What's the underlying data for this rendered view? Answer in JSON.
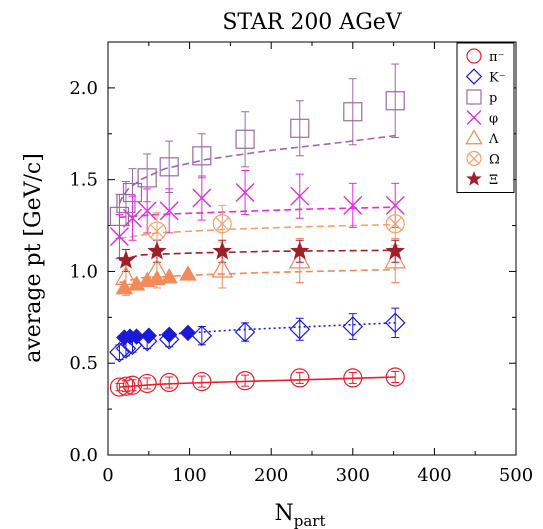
{
  "chart_data": {
    "type": "scatter",
    "title": "STAR 200 AGeV",
    "xlabel": "N",
    "xlabel_sub": "part",
    "ylabel": "average pt [GeV/c]",
    "xlim": [
      0,
      500
    ],
    "ylim": [
      0,
      2.25
    ],
    "xticks": [
      0,
      100,
      200,
      300,
      400,
      500
    ],
    "yticks": [
      0.0,
      0.5,
      1.0,
      1.5,
      2.0
    ],
    "xtick_labels": [
      "0",
      "100",
      "200",
      "300",
      "400",
      "500"
    ],
    "ytick_labels": [
      "0.0",
      "0.5",
      "1.0",
      "1.5",
      "2.0"
    ],
    "grid": false,
    "legend_position": "top-right",
    "series": [
      {
        "name": "π⁻",
        "marker": "circle",
        "color": "#e8202a",
        "points": [
          {
            "x": 14,
            "y": 0.37,
            "err": 0.02
          },
          {
            "x": 22,
            "y": 0.375,
            "err": 0.03
          },
          {
            "x": 30,
            "y": 0.38,
            "err": 0.03
          },
          {
            "x": 48,
            "y": 0.39,
            "err": 0.03
          },
          {
            "x": 75,
            "y": 0.395,
            "err": 0.03
          },
          {
            "x": 115,
            "y": 0.4,
            "err": 0.03
          },
          {
            "x": 168,
            "y": 0.405,
            "err": 0.03
          },
          {
            "x": 235,
            "y": 0.42,
            "err": 0.03
          },
          {
            "x": 300,
            "y": 0.42,
            "err": 0.03
          },
          {
            "x": 352,
            "y": 0.425,
            "err": 0.03
          }
        ],
        "fit": [
          [
            14,
            0.37
          ],
          [
            60,
            0.385
          ],
          [
            120,
            0.395
          ],
          [
            200,
            0.405
          ],
          [
            280,
            0.415
          ],
          [
            352,
            0.425
          ]
        ]
      },
      {
        "name": "K⁻",
        "marker": "diamond",
        "color": "#1a1ad8",
        "points": [
          {
            "x": 14,
            "y": 0.56,
            "err": 0.04
          },
          {
            "x": 22,
            "y": 0.58,
            "err": 0.04
          },
          {
            "x": 30,
            "y": 0.6,
            "err": 0.04
          },
          {
            "x": 48,
            "y": 0.62,
            "err": 0.04
          },
          {
            "x": 75,
            "y": 0.63,
            "err": 0.04
          },
          {
            "x": 115,
            "y": 0.65,
            "err": 0.05
          },
          {
            "x": 168,
            "y": 0.67,
            "err": 0.05
          },
          {
            "x": 235,
            "y": 0.685,
            "err": 0.06
          },
          {
            "x": 300,
            "y": 0.7,
            "err": 0.07
          },
          {
            "x": 352,
            "y": 0.72,
            "err": 0.08
          }
        ],
        "filled": [
          {
            "x": 20,
            "y": 0.64
          },
          {
            "x": 27,
            "y": 0.645
          },
          {
            "x": 35,
            "y": 0.645
          },
          {
            "x": 50,
            "y": 0.65
          },
          {
            "x": 75,
            "y": 0.655
          },
          {
            "x": 98,
            "y": 0.665
          }
        ],
        "fit": [
          [
            14,
            0.62
          ],
          [
            40,
            0.645
          ],
          [
            80,
            0.66
          ],
          [
            150,
            0.68
          ],
          [
            250,
            0.7
          ],
          [
            352,
            0.72
          ]
        ]
      },
      {
        "name": "p",
        "marker": "square",
        "color": "#9a6aa8",
        "points": [
          {
            "x": 14,
            "y": 1.3,
            "err": 0.12
          },
          {
            "x": 22,
            "y": 1.37,
            "err": 0.12
          },
          {
            "x": 30,
            "y": 1.43,
            "err": 0.13
          },
          {
            "x": 48,
            "y": 1.51,
            "err": 0.13
          },
          {
            "x": 75,
            "y": 1.57,
            "err": 0.14
          },
          {
            "x": 115,
            "y": 1.63,
            "err": 0.12
          },
          {
            "x": 168,
            "y": 1.72,
            "err": 0.15
          },
          {
            "x": 235,
            "y": 1.78,
            "err": 0.15
          },
          {
            "x": 300,
            "y": 1.87,
            "err": 0.18
          },
          {
            "x": 352,
            "y": 1.93,
            "err": 0.2
          }
        ],
        "fit": [
          [
            14,
            1.37
          ],
          [
            18,
            1.41
          ],
          [
            25,
            1.45
          ],
          [
            40,
            1.5
          ],
          [
            70,
            1.56
          ],
          [
            120,
            1.61
          ],
          [
            200,
            1.66
          ],
          [
            280,
            1.7
          ],
          [
            352,
            1.74
          ]
        ]
      },
      {
        "name": "φ",
        "marker": "x",
        "color": "#e02ee0",
        "points": [
          {
            "x": 14,
            "y": 1.19,
            "err": 0.12
          },
          {
            "x": 30,
            "y": 1.29,
            "err": 0.12
          },
          {
            "x": 48,
            "y": 1.33,
            "err": 0.12
          },
          {
            "x": 75,
            "y": 1.33,
            "err": 0.12
          },
          {
            "x": 115,
            "y": 1.4,
            "err": 0.12
          },
          {
            "x": 168,
            "y": 1.43,
            "err": 0.12
          },
          {
            "x": 235,
            "y": 1.41,
            "err": 0.12
          },
          {
            "x": 300,
            "y": 1.36,
            "err": 0.12
          },
          {
            "x": 352,
            "y": 1.36,
            "err": 0.12
          }
        ],
        "fit": [
          [
            14,
            1.295
          ],
          [
            60,
            1.31
          ],
          [
            150,
            1.325
          ],
          [
            250,
            1.34
          ],
          [
            352,
            1.35
          ]
        ]
      },
      {
        "name": "Λ",
        "marker": "triangle",
        "color": "#f4895a",
        "points": [
          {
            "x": 22,
            "y": 0.97,
            "err": 0.1
          },
          {
            "x": 60,
            "y": 1.01,
            "err": 0.1
          },
          {
            "x": 140,
            "y": 1.01,
            "err": 0.1
          },
          {
            "x": 235,
            "y": 1.06,
            "err": 0.12
          },
          {
            "x": 352,
            "y": 1.06,
            "err": 0.12
          }
        ],
        "filled": [
          {
            "x": 20,
            "y": 0.91
          },
          {
            "x": 35,
            "y": 0.93
          },
          {
            "x": 48,
            "y": 0.95
          },
          {
            "x": 60,
            "y": 0.96
          },
          {
            "x": 75,
            "y": 0.97
          },
          {
            "x": 98,
            "y": 0.985
          }
        ],
        "fit": [
          [
            14,
            0.94
          ],
          [
            40,
            0.965
          ],
          [
            100,
            0.98
          ],
          [
            200,
            0.995
          ],
          [
            300,
            1.005
          ],
          [
            352,
            1.01
          ]
        ]
      },
      {
        "name": "Ω",
        "marker": "circlex",
        "color": "#f4a26a",
        "points": [
          {
            "x": 60,
            "y": 1.22,
            "err": 0.1
          },
          {
            "x": 140,
            "y": 1.26,
            "err": 0.1
          },
          {
            "x": 352,
            "y": 1.26,
            "err": 0.12
          }
        ],
        "fit": [
          [
            14,
            1.18
          ],
          [
            60,
            1.21
          ],
          [
            150,
            1.23
          ],
          [
            250,
            1.245
          ],
          [
            352,
            1.255
          ]
        ]
      },
      {
        "name": "Ξ",
        "marker": "star",
        "color": "#a0202a",
        "points": [
          {
            "x": 22,
            "y": 1.06,
            "err": 0.06
          },
          {
            "x": 60,
            "y": 1.11,
            "err": 0.06
          },
          {
            "x": 140,
            "y": 1.11,
            "err": 0.06
          },
          {
            "x": 235,
            "y": 1.11,
            "err": 0.06
          },
          {
            "x": 352,
            "y": 1.11,
            "err": 0.06
          }
        ],
        "fit": [
          [
            14,
            1.06
          ],
          [
            40,
            1.09
          ],
          [
            100,
            1.1
          ],
          [
            200,
            1.11
          ],
          [
            352,
            1.115
          ]
        ]
      }
    ]
  }
}
